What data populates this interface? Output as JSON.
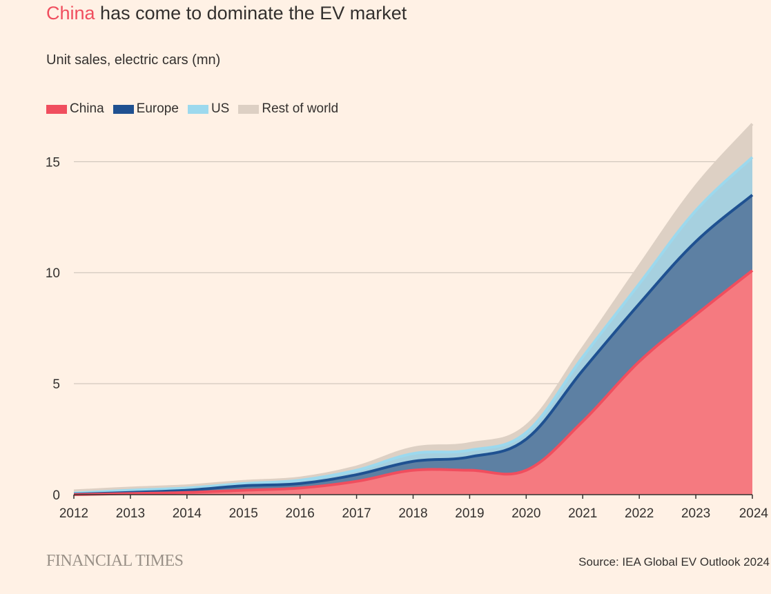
{
  "header": {
    "title_highlight": "China",
    "title_rest": " has come to dominate the EV market",
    "subtitle": "Unit sales, electric cars (mn)"
  },
  "footer": {
    "brand": "FINANCIAL TIMES",
    "source": "Source: IEA Global EV Outlook 2024"
  },
  "colors": {
    "background": "#fff1e5",
    "china": "#f04e5e",
    "china_fill": "#f57a80",
    "europe": "#1f5191",
    "europe_fill": "#5d80a3",
    "us": "#9cd9ee",
    "us_fill": "#a6d0df",
    "row": "#ddd0c4",
    "grid": "#c7bdb4"
  },
  "chart_data": {
    "type": "area",
    "stacked": true,
    "x": [
      "2012",
      "2013",
      "2014",
      "2015",
      "2016",
      "2017",
      "2018",
      "2019",
      "2020",
      "2021",
      "2022",
      "2023",
      "2024"
    ],
    "series": [
      {
        "name": "China",
        "color": "#f04e5e",
        "values": [
          0.0,
          0.05,
          0.1,
          0.2,
          0.3,
          0.6,
          1.1,
          1.1,
          1.1,
          3.3,
          6.0,
          8.1,
          10.1
        ]
      },
      {
        "name": "Europe",
        "color": "#1f5191",
        "values": [
          0.02,
          0.05,
          0.1,
          0.2,
          0.2,
          0.3,
          0.4,
          0.6,
          1.4,
          2.3,
          2.6,
          3.3,
          3.4
        ]
      },
      {
        "name": "US",
        "color": "#9cd9ee",
        "values": [
          0.05,
          0.1,
          0.1,
          0.1,
          0.15,
          0.2,
          0.35,
          0.3,
          0.3,
          0.6,
          0.9,
          1.4,
          1.7
        ]
      },
      {
        "name": "Rest of world",
        "color": "#ddd0c4",
        "values": [
          0.1,
          0.1,
          0.1,
          0.1,
          0.1,
          0.15,
          0.25,
          0.3,
          0.3,
          0.4,
          0.8,
          1.1,
          1.5
        ]
      }
    ],
    "ylim": [
      0,
      17
    ],
    "yticks": [
      0,
      5,
      10,
      15
    ],
    "grid": true,
    "legend_position": "top-left"
  }
}
